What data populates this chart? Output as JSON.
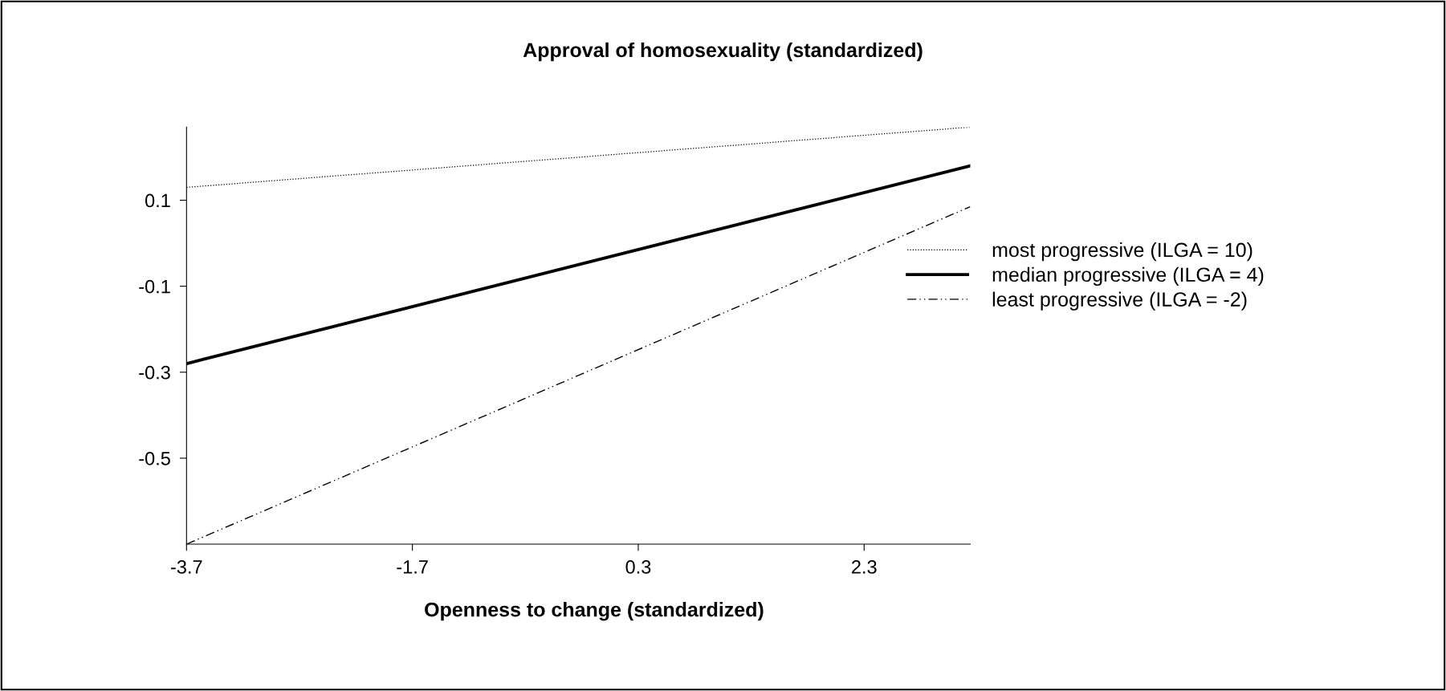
{
  "chart_data": {
    "type": "line",
    "title": "Approval of homosexuality (standardized)",
    "xlabel": "Openness to change (standardized)",
    "x": [
      -3.7,
      3.24
    ],
    "series": [
      {
        "name": "most progressive (ILGA = 10)",
        "color": "#000000",
        "values": [
          0.13,
          0.27
        ],
        "line_style": "dotted"
      },
      {
        "name": "median progressive (ILGA = 4)",
        "color": "#000000",
        "values": [
          -0.28,
          0.18
        ],
        "line_style": "solid"
      },
      {
        "name": "least progressive (ILGA = -2)",
        "color": "#000000",
        "values": [
          -0.7,
          0.085
        ],
        "line_style": "dashdot"
      }
    ],
    "xlim": [
      -3.7,
      3.24
    ],
    "xticks": [
      -3.7,
      -1.7,
      0.3,
      2.3
    ],
    "ylim": [
      -0.7,
      0.27
    ],
    "yticks": [
      -0.5,
      -0.3,
      -0.1,
      0.1
    ],
    "grid": false,
    "legend": "right",
    "marker": "none"
  }
}
